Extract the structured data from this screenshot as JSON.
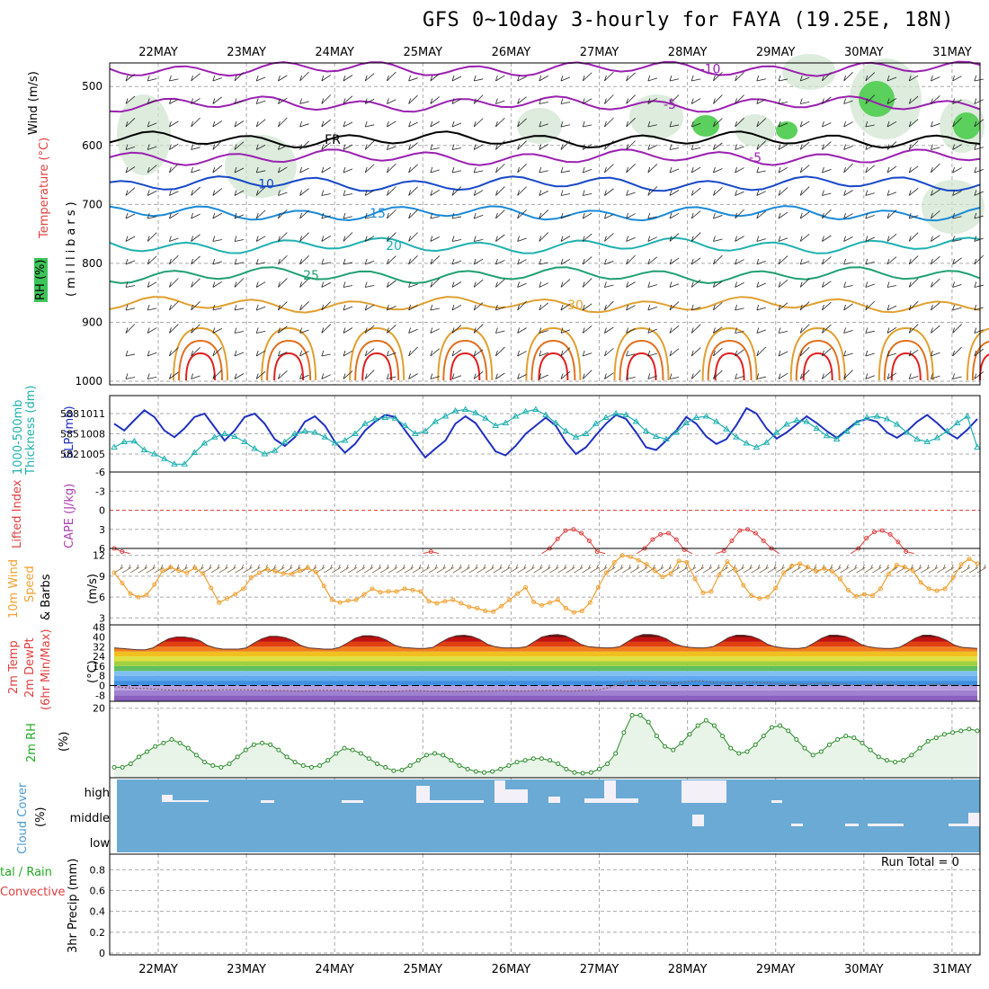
{
  "title": "GFS 0~10day 3-hourly for FAYA (19.25E, 18N)",
  "date_labels": [
    "22MAY",
    "23MAY",
    "24MAY",
    "25MAY",
    "26MAY",
    "27MAY",
    "28MAY",
    "29MAY",
    "30MAY",
    "31MAY"
  ],
  "colors": {
    "temp_label": "#e04040",
    "wind_label": "#000000",
    "rh_label": "#22aa22",
    "thick": "#20b0b0",
    "slp": "#2030c0",
    "cape": "#b040b0",
    "li": "#e04040",
    "speed": "#f0a030",
    "cloud": "#6aaad4",
    "rain": "#e04040",
    "total": "#22aa22",
    "mixing": "#00a070"
  },
  "labels": {
    "p1_wind": "Wind (m/s)",
    "p1_temp": "Temperature (°C)",
    "p1_rh": "RH (%)",
    "p1_units": "(millibars)",
    "p2_thick": "1000-500mb Thickness (dm)",
    "p2_slp": "SLP (mb)",
    "p3_li": "Lifted Index",
    "p3_cape": "CAPE (J/kg)",
    "p4_a": "10m Wind",
    "p4_b": "Speed",
    "p4_c": "& Barbs",
    "p4_units": "(m/s)",
    "p5_a": "2m Temp",
    "p5_b": "2m DewPt",
    "p5_c": "(6hr Min/Max)",
    "p5_units": "(°C)",
    "p6_a": "2m RH",
    "p6_units": "(%)",
    "p7_a": "Cloud Cover",
    "p7_units": "(%)",
    "p8_a": "tal / Rain",
    "p8_b": "Convective",
    "p8_c": "3hr Precip (mm)",
    "run_total": "Run Total = 0"
  },
  "chart_data": [
    {
      "type": "line",
      "name": "pressure-cross-section",
      "ylabel": "(millibars)",
      "yticks": [
        500,
        600,
        700,
        800,
        900,
        1000
      ],
      "temperature_contours": [
        {
          "label": "-10",
          "level_mb": 470
        },
        {
          "label": "-5",
          "level_mb": 530
        },
        {
          "label": "FR",
          "level_mb": 590
        },
        {
          "label": "-5",
          "level_mb": 620
        },
        {
          "label": "10",
          "level_mb": 665
        },
        {
          "label": "15",
          "level_mb": 715
        },
        {
          "label": "20",
          "level_mb": 770
        },
        {
          "label": "25",
          "level_mb": 820
        },
        {
          "label": "30",
          "level_mb": 870
        }
      ]
    },
    {
      "type": "line",
      "name": "thickness-slp",
      "thick_ticks": [
        "588",
        "585",
        "582"
      ],
      "slp_ticks": [
        "1011",
        "1008",
        "1005"
      ],
      "series": [
        {
          "name": "SLP",
          "values": [
            1009.5,
            1008.5,
            1010,
            1011.5,
            1010.5,
            1008.5,
            1007.5,
            1008.8,
            1010.5,
            1011,
            1009,
            1007,
            1008.5,
            1010.5,
            1011,
            1009.5,
            1007.2,
            1006.2,
            1007.5,
            1009.8,
            1010.6,
            1009.2,
            1006.8,
            1005.2,
            1006.5,
            1008.5,
            1009.8,
            1010.8,
            1010.5,
            1008.5,
            1006.5,
            1004.5,
            1005.8,
            1007,
            1009.5,
            1010.6,
            1009.6,
            1007.5,
            1005.4,
            1004.8,
            1006.2,
            1008,
            1009.2,
            1010.4,
            1009.2,
            1006.8,
            1005,
            1006,
            1007.8,
            1009.5,
            1010.8,
            1010.2,
            1008.2,
            1006,
            1005.6,
            1007,
            1008.5,
            1010.5,
            1009.5,
            1007.6,
            1006.5,
            1007.2,
            1009.3,
            1011.8,
            1011,
            1008.8,
            1007.3,
            1008.2,
            1009.4,
            1010.6,
            1009.6,
            1008.4,
            1007.4,
            1008.6,
            1009.8,
            1010.2,
            1009.8,
            1008.2,
            1007.4,
            1008.4,
            1009.8,
            1010.8,
            1009.6,
            1008.2,
            1007.3,
            1008.6,
            1010.2
          ]
        },
        {
          "name": "Thickness",
          "values": [
            583,
            583.8,
            583.9,
            582.6,
            582,
            581.3,
            580.5,
            580.5,
            582.2,
            583.6,
            584.5,
            585,
            584.6,
            583.8,
            582.8,
            582,
            582.5,
            583.8,
            585,
            585.4,
            585.2,
            584.5,
            583.6,
            584,
            585,
            586.5,
            587.2,
            587.4,
            587.3,
            586.2,
            585,
            585.4,
            586.8,
            587.6,
            588.4,
            588.6,
            588.1,
            587.3,
            586.2,
            586.6,
            587.6,
            588.3,
            588.6,
            587.8,
            586.6,
            585.4,
            584.5,
            585,
            586.5,
            587.4,
            588,
            587.8,
            586.8,
            585.4,
            584.6,
            584.2,
            585.2,
            586.6,
            587.4,
            587.6,
            586.8,
            585.7,
            584.5,
            583.6,
            583,
            583.7,
            585.2,
            586.4,
            587,
            586.8,
            585.8,
            584.7,
            584.2,
            585.4,
            586.6,
            587.4,
            587.6,
            587.2,
            586.4,
            585.2,
            584.2,
            583.8,
            584.4,
            585.4,
            586.6,
            587.6,
            583
          ]
        }
      ]
    },
    {
      "type": "line",
      "name": "lifted-index-cape",
      "yticks": [
        "-6",
        "-3",
        "0",
        "3",
        "6"
      ],
      "series": [
        {
          "name": "Lifted Index",
          "values": [
            6,
            6.5,
            7,
            7,
            7,
            7,
            7,
            7,
            7,
            7,
            7,
            7,
            7,
            7,
            7,
            7,
            7,
            7,
            7,
            7,
            7,
            7,
            7,
            7,
            7,
            7,
            7,
            7,
            7,
            7,
            7,
            7,
            7,
            7,
            7,
            7,
            7,
            7,
            7,
            7,
            6.5,
            7,
            7,
            7,
            7,
            7,
            7,
            7,
            7,
            7,
            7,
            7,
            7,
            7,
            7,
            6,
            4.5,
            3.2,
            3,
            3.6,
            4.8,
            6.5,
            7,
            7,
            7,
            7,
            7,
            6,
            4.6,
            3.8,
            3.6,
            4.6,
            6.2,
            7,
            7,
            7,
            7,
            6.4,
            4.8,
            3.2,
            3,
            3.6,
            4.8,
            6,
            7,
            7,
            7,
            7,
            7,
            7,
            7,
            7,
            7,
            7,
            6,
            4.4,
            3.4,
            3.2,
            3.8,
            5,
            6.5,
            7,
            7,
            7,
            7,
            7,
            7,
            7,
            7,
            7
          ]
        }
      ]
    },
    {
      "type": "line",
      "name": "10m-wind-speed",
      "ylabel": "(m/s)",
      "yticks": [
        "3",
        "6",
        "9",
        "12"
      ],
      "series": [
        {
          "name": "Speed",
          "values": [
            9.5,
            8,
            6.5,
            6,
            6.3,
            7.8,
            9.8,
            10.3,
            9.8,
            9.5,
            10.2,
            9.4,
            7.3,
            5.2,
            5.8,
            6.4,
            7.2,
            8.8,
            9.5,
            10,
            9.7,
            9.4,
            9.3,
            9.8,
            10.2,
            9.6,
            7.6,
            5.6,
            5.2,
            5.5,
            5.6,
            6.4,
            7.2,
            6.7,
            6.8,
            6.8,
            7.2,
            7,
            6.8,
            5.4,
            5.1,
            5.4,
            5.6,
            5.1,
            4.6,
            4.4,
            4,
            3.9,
            4.7,
            5.6,
            6.5,
            7.4,
            5.3,
            4.8,
            5.2,
            5.6,
            4.4,
            3.8,
            4,
            5.2,
            7.4,
            9.5,
            11,
            12,
            11.8,
            11.3,
            10.7,
            9.8,
            8.9,
            9.4,
            11.2,
            11,
            8.6,
            6.6,
            6.8,
            9.2,
            11.1,
            9.9,
            7.7,
            6.2,
            5.8,
            6,
            7.3,
            9.5,
            10.5,
            10.8,
            10.3,
            9.7,
            10.1,
            9.7,
            8.6,
            7,
            6.1,
            6.4,
            6.2,
            7.2,
            9.3,
            10.6,
            10.3,
            9.8,
            8.1,
            7.2,
            6.9,
            7.2,
            8.8,
            10.7,
            11.5,
            10.8
          ]
        }
      ]
    },
    {
      "type": "area",
      "name": "2m-temperature-dewpoint",
      "ylabel": "(°C)",
      "yticks": [
        "48",
        "40",
        "32",
        "24",
        "16",
        "8",
        "0",
        "-8"
      ],
      "series": [
        {
          "name": "2m Temp",
          "values": [
            31,
            30.5,
            30,
            29.5,
            29.5,
            31,
            35,
            38.5,
            40,
            40,
            39,
            37,
            33,
            31,
            30,
            30,
            30,
            31,
            35,
            38.5,
            40.5,
            40.5,
            39.5,
            37,
            33,
            31,
            30.5,
            30,
            30,
            31.5,
            35,
            39,
            41,
            41,
            40,
            37.5,
            33.5,
            31.5,
            31,
            30.5,
            30.5,
            31.5,
            35.5,
            39,
            41,
            41.5,
            40.5,
            38,
            34,
            32,
            31,
            31,
            31,
            32,
            36,
            40,
            41.5,
            42,
            41,
            38,
            34,
            32,
            31.5,
            31,
            31,
            32,
            36,
            40,
            42,
            42,
            41,
            38.5,
            34.5,
            32.5,
            31.5,
            31,
            31,
            32,
            35.5,
            39.5,
            41.5,
            41.5,
            40.5,
            38,
            34,
            32,
            31,
            30.5,
            30.5,
            31.5,
            35,
            39,
            41.5,
            41.5,
            40.5,
            38,
            34,
            32,
            31,
            30.5,
            30.5,
            31.5,
            35,
            39,
            41.5,
            41.5,
            40,
            37.5,
            33.5,
            31.5,
            31,
            30.5
          ]
        },
        {
          "name": "2m DewPt",
          "values": [
            -1,
            -1.5,
            -2,
            -2.5,
            -2.5,
            -3,
            -3.5,
            -3.8,
            -4,
            -4,
            -4,
            -4,
            -3.8,
            -3.5,
            -3.5,
            -3.5,
            -3.5,
            -3.8,
            -4,
            -4.2,
            -4.2,
            -4.2,
            -4.5,
            -4.5,
            -4.2,
            -4,
            -4,
            -4,
            -4.2,
            -4.5,
            -4.8,
            -5,
            -5,
            -5,
            -4.8,
            -4.5,
            -4.2,
            -4.2,
            -4.5,
            -4.8,
            -4.8,
            -5,
            -5,
            -4.8,
            -4.8,
            -4.5,
            -4.5,
            -4.2,
            -4.2,
            -4.5,
            -4.5,
            -4.2,
            -4,
            -4,
            -4,
            -4.5,
            -4.5,
            -4,
            -4,
            -3.5,
            -2,
            0.5,
            3,
            4,
            4,
            3.5,
            3,
            2.5,
            2,
            2.5,
            3.5,
            4,
            3.5,
            2.5,
            2,
            2,
            2,
            2.5,
            2.8,
            2.5,
            2,
            1.5,
            1,
            1,
            1,
            1.5,
            1.8,
            1.5,
            1.2,
            1,
            0.5,
            0.5,
            1,
            1.2,
            1,
            0.5,
            0,
            0,
            0,
            0.5,
            1,
            1,
            0.5,
            0.2,
            0,
            0
          ]
        }
      ]
    },
    {
      "type": "area",
      "name": "2m-relative-humidity",
      "ylabel": "(%)",
      "yticks": [
        "20"
      ],
      "series": [
        {
          "name": "2m RH",
          "values": [
            3,
            3,
            4,
            6,
            7.5,
            9,
            10,
            11,
            10,
            8.5,
            6.5,
            4.5,
            3.5,
            3,
            4,
            6,
            8,
            9.5,
            10,
            9.5,
            8,
            6,
            4.5,
            3.5,
            3,
            3.5,
            5,
            7,
            8.5,
            8,
            7,
            5.5,
            4,
            3,
            2,
            2.2,
            3.5,
            5,
            6.5,
            7,
            6.5,
            5,
            3.5,
            2.5,
            1.8,
            1.5,
            1.8,
            2.5,
            3.5,
            4.5,
            5,
            5.5,
            5.5,
            5,
            4,
            2.5,
            1.5,
            1.3,
            1.5,
            2.5,
            4,
            7,
            13,
            18,
            18,
            16,
            12,
            9,
            8,
            10,
            12.5,
            15,
            16.5,
            15,
            12,
            8.5,
            7,
            7.5,
            9.5,
            12,
            14.5,
            15,
            13.5,
            11,
            8.5,
            6.5,
            7.5,
            9.5,
            11,
            12,
            11.5,
            10,
            8,
            6,
            5,
            4.5,
            5,
            6.5,
            8.5,
            10.5,
            11.5,
            12.5,
            13,
            13.5,
            14,
            13.5
          ]
        }
      ]
    },
    {
      "type": "heatmap",
      "name": "cloud-cover",
      "ylabel": "(%)",
      "categories": [
        "high",
        "middle",
        "low"
      ]
    },
    {
      "type": "bar",
      "name": "3hr-precip",
      "ylabel": "3hr Precip (mm)",
      "yticks": [
        "0",
        "0.2",
        "0.4",
        "0.6",
        "0.8"
      ],
      "ylim": [
        0,
        0.95
      ],
      "values": []
    }
  ]
}
